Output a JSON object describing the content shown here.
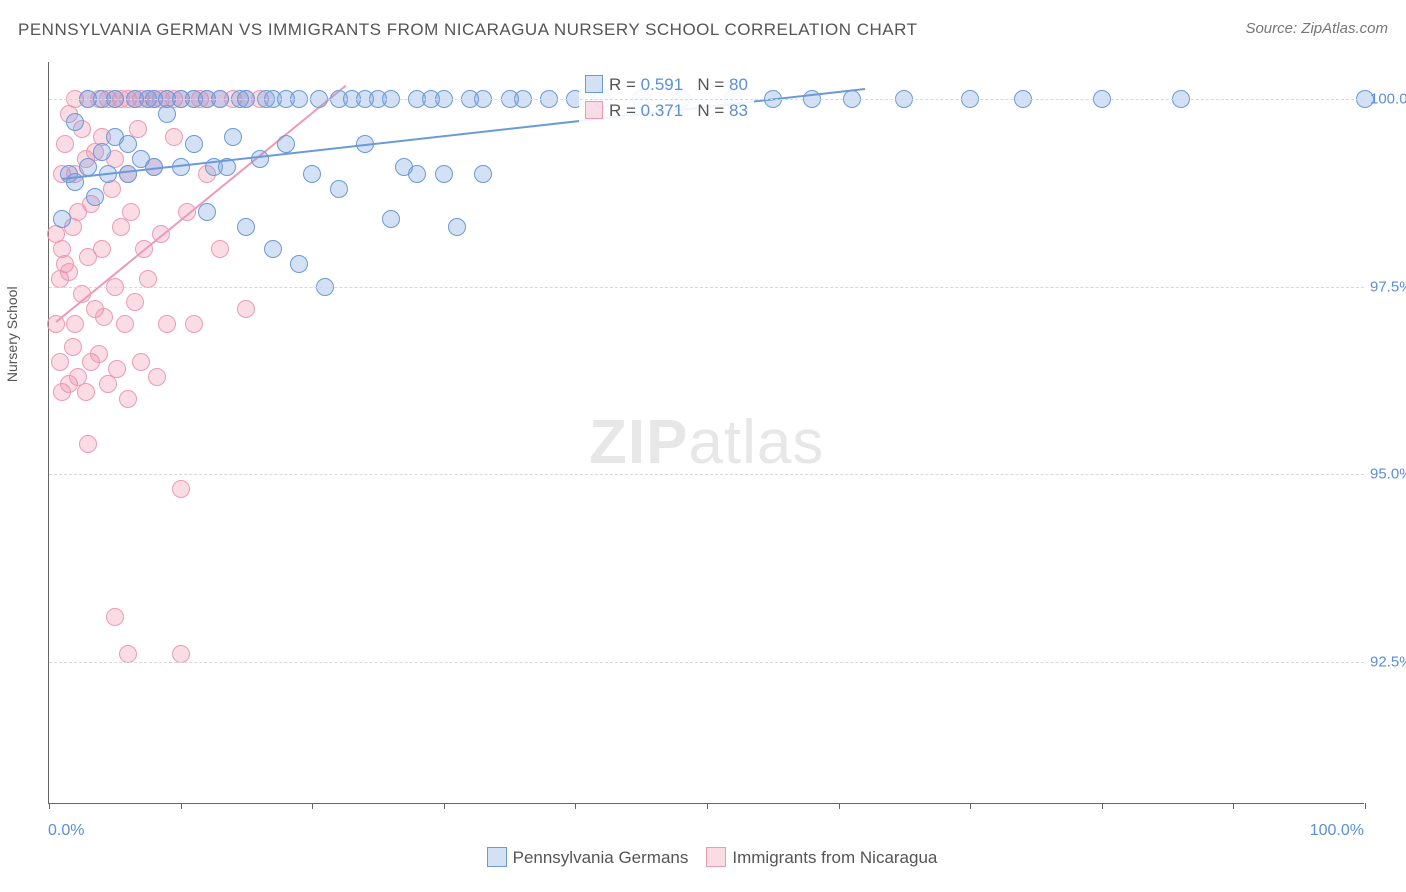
{
  "title": "PENNSYLVANIA GERMAN VS IMMIGRANTS FROM NICARAGUA NURSERY SCHOOL CORRELATION CHART",
  "source": "Source: ZipAtlas.com",
  "ylabel": "Nursery School",
  "watermark": {
    "bold": "ZIP",
    "rest": "atlas"
  },
  "chart": {
    "type": "scatter",
    "background_color": "#ffffff",
    "grid_color": "#d8d8d8",
    "axis_color": "#666666",
    "marker_radius": 9,
    "marker_stroke_width": 1.5,
    "trend_line_width": 2,
    "xlim": [
      0,
      100
    ],
    "ylim": [
      90.6,
      100.5
    ],
    "xticks_minor": [
      0,
      10,
      20,
      30,
      40,
      50,
      60,
      70,
      80,
      90,
      100
    ],
    "xticks_labeled": [
      {
        "x": 0,
        "label": "0.0%"
      },
      {
        "x": 100,
        "label": "100.0%"
      }
    ],
    "yticks": [
      {
        "y": 92.5,
        "label": "92.5%"
      },
      {
        "y": 95.0,
        "label": "95.0%"
      },
      {
        "y": 97.5,
        "label": "97.5%"
      },
      {
        "y": 100.0,
        "label": "100.0%"
      }
    ],
    "series": [
      {
        "name": "Pennsylvania Germans",
        "legend_label": "Pennsylvania Germans",
        "fill_color": "rgba(120,160,220,0.32)",
        "stroke_color": "#6a9bd8",
        "r_value": "0.591",
        "n_value": "80",
        "trend": {
          "x1": 1,
          "y1": 98.95,
          "x2": 62,
          "y2": 100.15
        },
        "points": [
          [
            1,
            98.4
          ],
          [
            1.5,
            99.0
          ],
          [
            2,
            98.9
          ],
          [
            2,
            99.7
          ],
          [
            3,
            99.1
          ],
          [
            3,
            100.0
          ],
          [
            3.5,
            98.7
          ],
          [
            4,
            99.3
          ],
          [
            4,
            100.0
          ],
          [
            4.5,
            99.0
          ],
          [
            5,
            99.5
          ],
          [
            5,
            100.0
          ],
          [
            6,
            99.0
          ],
          [
            6,
            99.4
          ],
          [
            6.5,
            100.0
          ],
          [
            7,
            99.2
          ],
          [
            7.5,
            100.0
          ],
          [
            8,
            99.1
          ],
          [
            8,
            100.0
          ],
          [
            9,
            99.8
          ],
          [
            9,
            100.0
          ],
          [
            10,
            99.1
          ],
          [
            10,
            100.0
          ],
          [
            11,
            99.4
          ],
          [
            11,
            100.0
          ],
          [
            12,
            98.5
          ],
          [
            12,
            100.0
          ],
          [
            12.5,
            99.1
          ],
          [
            13,
            100.0
          ],
          [
            13.5,
            99.1
          ],
          [
            14,
            99.5
          ],
          [
            14.5,
            100.0
          ],
          [
            15,
            98.3
          ],
          [
            15,
            100.0
          ],
          [
            16,
            99.2
          ],
          [
            16.5,
            100.0
          ],
          [
            17,
            98.0
          ],
          [
            17,
            100.0
          ],
          [
            18,
            99.4
          ],
          [
            18,
            100.0
          ],
          [
            19,
            97.8
          ],
          [
            19,
            100.0
          ],
          [
            20,
            99.0
          ],
          [
            20.5,
            100.0
          ],
          [
            21,
            97.5
          ],
          [
            22,
            98.8
          ],
          [
            22,
            100.0
          ],
          [
            23,
            100.0
          ],
          [
            24,
            99.4
          ],
          [
            24,
            100.0
          ],
          [
            25,
            100.0
          ],
          [
            26,
            98.4
          ],
          [
            26,
            100.0
          ],
          [
            27,
            99.1
          ],
          [
            28,
            99.0
          ],
          [
            28,
            100.0
          ],
          [
            29,
            100.0
          ],
          [
            30,
            99.0
          ],
          [
            30,
            100.0
          ],
          [
            31,
            98.3
          ],
          [
            32,
            100.0
          ],
          [
            33,
            99.0
          ],
          [
            33,
            100.0
          ],
          [
            35,
            100.0
          ],
          [
            36,
            100.0
          ],
          [
            38,
            100.0
          ],
          [
            40,
            100.0
          ],
          [
            42,
            100.0
          ],
          [
            45,
            100.0
          ],
          [
            48,
            100.0
          ],
          [
            52,
            100.0
          ],
          [
            55,
            100.0
          ],
          [
            58,
            100.0
          ],
          [
            61,
            100.0
          ],
          [
            65,
            100.0
          ],
          [
            70,
            100.0
          ],
          [
            74,
            100.0
          ],
          [
            80,
            100.0
          ],
          [
            86,
            100.0
          ],
          [
            100,
            100.0
          ]
        ]
      },
      {
        "name": "Immigrants from Nicaragua",
        "legend_label": "Immigrants from Nicaragua",
        "fill_color": "rgba(240,140,170,0.30)",
        "stroke_color": "#ec9ab6",
        "r_value": "0.371",
        "n_value": "83",
        "trend": {
          "x1": 0.5,
          "y1": 97.05,
          "x2": 22.5,
          "y2": 100.2
        },
        "points": [
          [
            0.5,
            98.2
          ],
          [
            0.5,
            97.0
          ],
          [
            0.8,
            96.5
          ],
          [
            0.8,
            97.6
          ],
          [
            1,
            98.0
          ],
          [
            1,
            99.0
          ],
          [
            1,
            96.1
          ],
          [
            1.2,
            97.8
          ],
          [
            1.2,
            99.4
          ],
          [
            1.5,
            96.2
          ],
          [
            1.5,
            97.7
          ],
          [
            1.5,
            99.8
          ],
          [
            1.8,
            96.7
          ],
          [
            1.8,
            98.3
          ],
          [
            2,
            99.0
          ],
          [
            2,
            97.0
          ],
          [
            2,
            100.0
          ],
          [
            2.2,
            96.3
          ],
          [
            2.2,
            98.5
          ],
          [
            2.5,
            99.6
          ],
          [
            2.5,
            97.4
          ],
          [
            2.8,
            96.1
          ],
          [
            2.8,
            99.2
          ],
          [
            3,
            97.9
          ],
          [
            3,
            100.0
          ],
          [
            3.2,
            98.6
          ],
          [
            3.2,
            96.5
          ],
          [
            3.5,
            99.3
          ],
          [
            3.5,
            97.2
          ],
          [
            3.8,
            100.0
          ],
          [
            3.8,
            96.6
          ],
          [
            4,
            98.0
          ],
          [
            4,
            99.5
          ],
          [
            4.2,
            97.1
          ],
          [
            4.5,
            100.0
          ],
          [
            4.5,
            96.2
          ],
          [
            4.8,
            98.8
          ],
          [
            5,
            97.5
          ],
          [
            5,
            99.2
          ],
          [
            5,
            100.0
          ],
          [
            5.2,
            96.4
          ],
          [
            5.5,
            98.3
          ],
          [
            5.5,
            100.0
          ],
          [
            5.8,
            97.0
          ],
          [
            6,
            99.0
          ],
          [
            6,
            96.0
          ],
          [
            6,
            100.0
          ],
          [
            6.2,
            98.5
          ],
          [
            6.5,
            97.3
          ],
          [
            6.5,
            100.0
          ],
          [
            6.8,
            99.6
          ],
          [
            7,
            96.5
          ],
          [
            7,
            100.0
          ],
          [
            7.2,
            98.0
          ],
          [
            7.5,
            100.0
          ],
          [
            7.5,
            97.6
          ],
          [
            8,
            99.1
          ],
          [
            8,
            100.0
          ],
          [
            8.2,
            96.3
          ],
          [
            8.5,
            100.0
          ],
          [
            8.5,
            98.2
          ],
          [
            9,
            100.0
          ],
          [
            9,
            97.0
          ],
          [
            9.5,
            99.5
          ],
          [
            9.5,
            100.0
          ],
          [
            10,
            94.8
          ],
          [
            10,
            100.0
          ],
          [
            10.5,
            98.5
          ],
          [
            11,
            100.0
          ],
          [
            11,
            97.0
          ],
          [
            11.5,
            100.0
          ],
          [
            12,
            99.0
          ],
          [
            12,
            100.0
          ],
          [
            13,
            98.0
          ],
          [
            13,
            100.0
          ],
          [
            14,
            100.0
          ],
          [
            15,
            97.2
          ],
          [
            15,
            100.0
          ],
          [
            16,
            100.0
          ],
          [
            5,
            93.1
          ],
          [
            6,
            92.6
          ],
          [
            10,
            92.6
          ],
          [
            3,
            95.4
          ]
        ]
      }
    ]
  },
  "stats_box": {
    "r_label": "R =",
    "n_label": "N ="
  },
  "bottom_legend": {
    "items": [
      {
        "label": "Pennsylvania Germans",
        "fill": "rgba(120,160,220,0.32)",
        "stroke": "#6a9bd8"
      },
      {
        "label": "Immigrants from Nicaragua",
        "fill": "rgba(240,140,170,0.30)",
        "stroke": "#ec9ab6"
      }
    ]
  }
}
